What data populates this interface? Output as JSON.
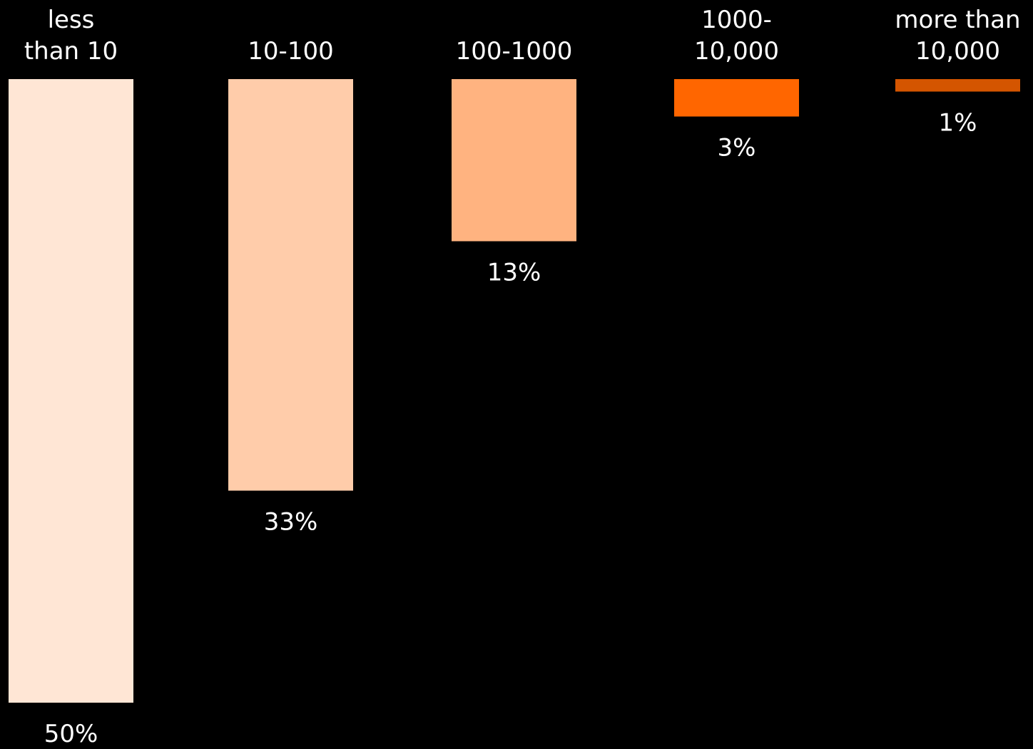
{
  "chart_data": {
    "type": "bar",
    "orientation": "vertical-hanging",
    "categories": [
      "less than 10",
      "10-100",
      "100-1000",
      "1000-10,000",
      "more than 10,000"
    ],
    "category_label_lines": [
      [
        "less",
        "than 10"
      ],
      [
        "10-100"
      ],
      [
        "100-1000"
      ],
      [
        "1000-",
        "10,000"
      ],
      [
        "more than",
        "10,000"
      ]
    ],
    "values": [
      50,
      33,
      13,
      3,
      1
    ],
    "value_labels": [
      "50%",
      "33%",
      "13%",
      "3%",
      "1%"
    ],
    "colors": [
      "#FFE6D5",
      "#FFCCAA",
      "#FFB380",
      "#FF6600",
      "#D45500"
    ],
    "background": "#000000",
    "title": "",
    "xlabel": "",
    "ylabel": "",
    "grid": false,
    "legend": "none"
  }
}
